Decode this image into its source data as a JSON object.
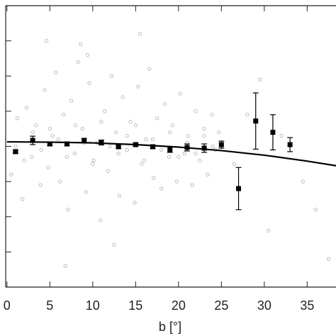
{
  "chart_data": {
    "type": "scatter",
    "x_label": "b [°]",
    "xlim": [
      -0.15,
      38.36
    ],
    "xticks": [
      0,
      5,
      10,
      15,
      20,
      25,
      30,
      35
    ],
    "ylim": [
      0,
      8
    ],
    "yticks": [
      1,
      2,
      3,
      4,
      5,
      6,
      7
    ],
    "series": [
      {
        "type": "scatter",
        "color": "#bdbdbd",
        "x": [
          0.5,
          1.2,
          1.8,
          2.3,
          2.9,
          3.4,
          3.9,
          4.4,
          4.8,
          5.3,
          5.7,
          6.2,
          6.6,
          7.1,
          7.5,
          7.9,
          8.3,
          8.8,
          9.2,
          9.6,
          10.1,
          10.5,
          10.9,
          11.4,
          11.8,
          12.2,
          12.7,
          13.1,
          13.5,
          14.0,
          14.4,
          14.9,
          15.3,
          15.7,
          16.2,
          16.6,
          17.1,
          17.5,
          18.0,
          18.4,
          18.9,
          19.3,
          19.8,
          20.2,
          20.7,
          21.1,
          21.6,
          22.0,
          22.5,
          23.0,
          23.4,
          23.9,
          24.3,
          24.7,
          1.0,
          2.0,
          3.0,
          4.0,
          5.0,
          6.0,
          7.0,
          8.0,
          9.0,
          10.0,
          11.0,
          12.0,
          13.0,
          14.0,
          15.0,
          16.0,
          17.0,
          18.0,
          19.0,
          20.0,
          21.0,
          22.0,
          23.0,
          24.0,
          4.6,
          8.6,
          9.4,
          12.5,
          6.8,
          15.5,
          26.5,
          28.0,
          30.5,
          32.0,
          34.5,
          36.0,
          37.5,
          29.5
        ],
        "values": [
          3.2,
          4.8,
          2.5,
          5.1,
          3.7,
          4.6,
          2.9,
          5.6,
          3.4,
          4.3,
          6.1,
          3.0,
          4.9,
          2.2,
          5.3,
          3.8,
          6.4,
          4.5,
          2.7,
          5.8,
          3.6,
          4.1,
          1.9,
          5.0,
          3.3,
          6.0,
          4.4,
          2.6,
          5.4,
          3.9,
          4.7,
          2.4,
          5.7,
          3.5,
          4.2,
          6.2,
          3.1,
          4.8,
          2.8,
          5.2,
          3.7,
          4.6,
          3.0,
          5.5,
          3.8,
          4.3,
          2.9,
          5.0,
          3.6,
          4.5,
          3.2,
          4.9,
          3.9,
          4.4,
          4.0,
          3.6,
          4.4,
          3.9,
          4.5,
          4.2,
          3.7,
          4.6,
          4.1,
          3.5,
          4.7,
          4.0,
          3.8,
          4.3,
          4.6,
          3.6,
          4.2,
          3.9,
          4.4,
          3.7,
          4.1,
          3.8,
          4.3,
          4.0,
          7.0,
          6.9,
          6.6,
          1.2,
          0.6,
          7.2,
          3.5,
          4.9,
          1.6,
          4.3,
          3.0,
          2.2,
          0.8,
          5.9
        ]
      },
      {
        "type": "errorbar",
        "color": "#000000",
        "x": [
          1,
          3,
          5,
          7,
          9,
          11,
          13,
          15,
          17,
          19,
          21,
          23,
          25,
          27,
          29,
          31,
          33
        ],
        "values": [
          3.85,
          4.17,
          4.07,
          4.07,
          4.17,
          4.11,
          3.99,
          4.05,
          3.99,
          3.91,
          3.97,
          3.95,
          4.05,
          2.8,
          4.72,
          4.4,
          4.05
        ],
        "errors": [
          0.05,
          0.12,
          0.05,
          0.05,
          0.06,
          0.07,
          0.05,
          0.05,
          0.05,
          0.08,
          0.1,
          0.12,
          0.1,
          0.6,
          0.8,
          0.5,
          0.2
        ]
      },
      {
        "type": "line",
        "color": "#000000",
        "x": [
          0,
          5,
          10,
          15,
          20,
          25,
          30,
          35,
          38.36
        ],
        "values": [
          4.13,
          4.12,
          4.1,
          4.05,
          3.98,
          3.88,
          3.75,
          3.58,
          3.45
        ]
      }
    ]
  }
}
